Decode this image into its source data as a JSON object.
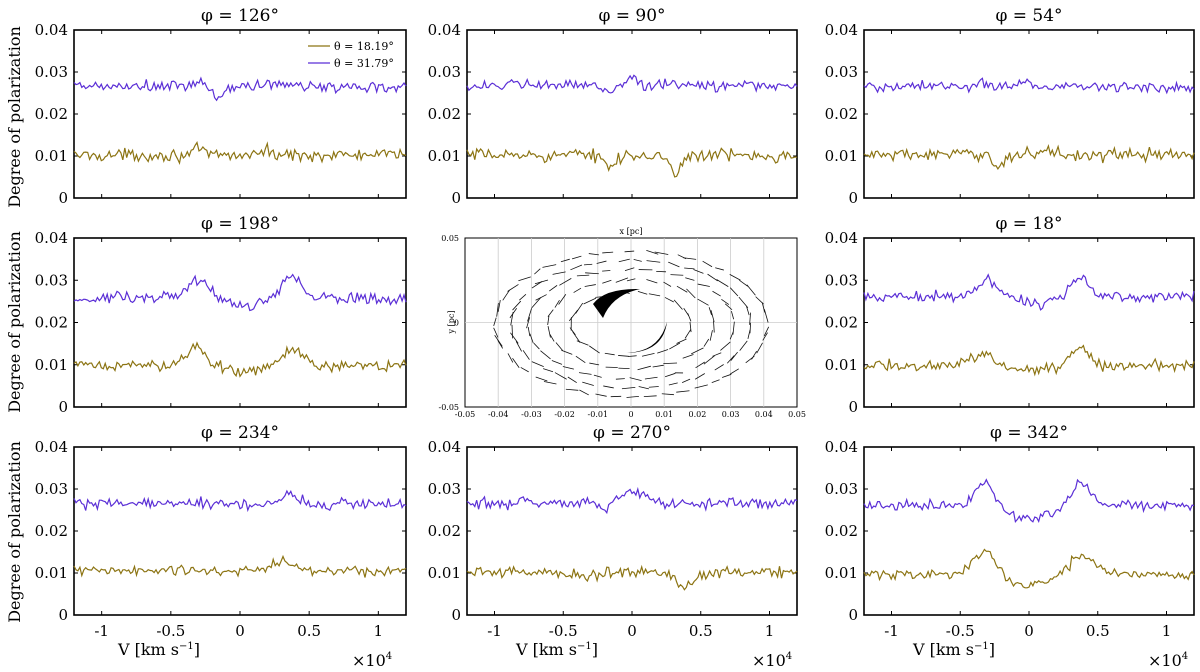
{
  "figure": {
    "ylabel": "Degree of polarization",
    "xlabel": "V [km s",
    "xlabel_exp": "−1",
    "xlabel_close": "]",
    "x_multiplier": "×10",
    "x_multiplier_exp": "4"
  },
  "inset": {
    "xlabel": "x [pc]",
    "ylabel": "y [pc]",
    "xticks": [
      "-0.05",
      "-0.04",
      "-0.03",
      "-0.02",
      "-0.01",
      "0",
      "0.01",
      "0.02",
      "0.03",
      "0.04",
      "0.05"
    ],
    "yticks": [
      "0.05",
      "0",
      "-0.05"
    ]
  },
  "colors": {
    "theta_low": "#8c7413",
    "theta_high": "#5b2fd6",
    "axis": "#000000"
  },
  "chart_data": [
    {
      "type": "line",
      "panel": "phi_126",
      "title": "φ = 126°",
      "phi": "126",
      "xlim": [
        -12000,
        12000
      ],
      "ylim": [
        0,
        0.04
      ],
      "yticks": [
        "0",
        "0.01",
        "0.02",
        "0.03",
        "0.04"
      ],
      "xticks": [
        "-1",
        "-0.5",
        "0",
        "0.5",
        "1"
      ],
      "legend": {
        "position": "top-right",
        "entries": [
          "θ = 18.19°",
          "θ = 31.79°"
        ]
      },
      "series": [
        {
          "name": "θ = 18.19°",
          "color": "#8c7413",
          "mean": 0.0102,
          "noise": 0.0011,
          "features": [
            {
              "v": -3000,
              "amp": 0.0012,
              "w": 400
            },
            {
              "v": 1800,
              "amp": 0.0008,
              "w": 600
            }
          ]
        },
        {
          "name": "θ = 31.79°",
          "color": "#5b2fd6",
          "mean": 0.0265,
          "noise": 0.0011,
          "features": [
            {
              "v": -2800,
              "amp": 0.0015,
              "w": 400
            },
            {
              "v": -1700,
              "amp": -0.0025,
              "w": 500
            },
            {
              "v": 2500,
              "amp": 0.0008,
              "w": 700
            }
          ]
        }
      ]
    },
    {
      "type": "line",
      "panel": "phi_90",
      "title": "φ = 90°",
      "phi": "90",
      "xlim": [
        -12000,
        12000
      ],
      "ylim": [
        0,
        0.04
      ],
      "yticks": [
        "0",
        "0.01",
        "0.02",
        "0.03",
        "0.04"
      ],
      "xticks": [
        "-1",
        "-0.5",
        "0",
        "0.5",
        "1"
      ],
      "series": [
        {
          "name": "θ = 18.19°",
          "color": "#8c7413",
          "mean": 0.0102,
          "noise": 0.0011,
          "features": [
            {
              "v": -1500,
              "amp": -0.0025,
              "w": 350
            },
            {
              "v": 1400,
              "amp": -0.0012,
              "w": 400
            },
            {
              "v": 3200,
              "amp": -0.0045,
              "w": 350
            }
          ]
        },
        {
          "name": "θ = 31.79°",
          "color": "#5b2fd6",
          "mean": 0.0268,
          "noise": 0.001,
          "features": [
            {
              "v": 0,
              "amp": 0.0022,
              "w": 350
            },
            {
              "v": -1800,
              "amp": -0.0012,
              "w": 400
            }
          ]
        }
      ]
    },
    {
      "type": "line",
      "panel": "phi_54",
      "title": "φ = 54°",
      "phi": "54",
      "xlim": [
        -12000,
        12000
      ],
      "ylim": [
        0,
        0.04
      ],
      "yticks": [
        "0",
        "0.01",
        "0.02",
        "0.03",
        "0.04"
      ],
      "xticks": [
        "-1",
        "-0.5",
        "0",
        "0.5",
        "1"
      ],
      "series": [
        {
          "name": "θ = 18.19°",
          "color": "#8c7413",
          "mean": 0.0103,
          "noise": 0.0011,
          "features": [
            {
              "v": -2300,
              "amp": -0.0028,
              "w": 350
            },
            {
              "v": 1400,
              "amp": 0.0012,
              "w": 450
            }
          ]
        },
        {
          "name": "θ = 31.79°",
          "color": "#5b2fd6",
          "mean": 0.0265,
          "noise": 0.001,
          "features": [
            {
              "v": -3500,
              "amp": 0.0012,
              "w": 400
            },
            {
              "v": -200,
              "amp": 0.0012,
              "w": 500
            }
          ]
        }
      ]
    },
    {
      "type": "line",
      "panel": "phi_198",
      "title": "φ = 198°",
      "phi": "198",
      "xlim": [
        -12000,
        12000
      ],
      "ylim": [
        0,
        0.04
      ],
      "yticks": [
        "0",
        "0.01",
        "0.02",
        "0.03",
        "0.04"
      ],
      "xticks": [
        "-1",
        "-0.5",
        "0",
        "0.5",
        "1"
      ],
      "series": [
        {
          "name": "θ = 18.19°",
          "color": "#8c7413",
          "mean": 0.0098,
          "noise": 0.001,
          "features": [
            {
              "v": -3200,
              "amp": 0.0045,
              "w": 700
            },
            {
              "v": 3800,
              "amp": 0.0035,
              "w": 700
            },
            {
              "v": 300,
              "amp": -0.0015,
              "w": 900
            }
          ]
        },
        {
          "name": "θ = 31.79°",
          "color": "#5b2fd6",
          "mean": 0.0258,
          "noise": 0.001,
          "features": [
            {
              "v": -3000,
              "amp": 0.0038,
              "w": 800
            },
            {
              "v": 3700,
              "amp": 0.005,
              "w": 700
            },
            {
              "v": 400,
              "amp": -0.002,
              "w": 1200
            }
          ]
        }
      ]
    },
    {
      "type": "line",
      "panel": "phi_18",
      "title": "φ = 18°",
      "phi": "18",
      "xlim": [
        -12000,
        12000
      ],
      "ylim": [
        0,
        0.04
      ],
      "yticks": [
        "0",
        "0.01",
        "0.02",
        "0.03",
        "0.04"
      ],
      "xticks": [
        "-1",
        "-0.5",
        "0",
        "0.5",
        "1"
      ],
      "series": [
        {
          "name": "θ = 18.19°",
          "color": "#8c7413",
          "mean": 0.0098,
          "noise": 0.001,
          "features": [
            {
              "v": -3500,
              "amp": 0.0025,
              "w": 800
            },
            {
              "v": 3800,
              "amp": 0.0045,
              "w": 600
            },
            {
              "v": 300,
              "amp": -0.0012,
              "w": 1000
            }
          ]
        },
        {
          "name": "θ = 31.79°",
          "color": "#5b2fd6",
          "mean": 0.0262,
          "noise": 0.001,
          "features": [
            {
              "v": -3000,
              "amp": 0.0035,
              "w": 700
            },
            {
              "v": 3700,
              "amp": 0.0045,
              "w": 600
            },
            {
              "v": 400,
              "amp": -0.0018,
              "w": 1200
            }
          ]
        }
      ]
    },
    {
      "type": "line",
      "panel": "phi_234",
      "title": "φ = 234°",
      "phi": "234",
      "xlim": [
        -12000,
        12000
      ],
      "ylim": [
        0,
        0.04
      ],
      "yticks": [
        "0",
        "0.01",
        "0.02",
        "0.03",
        "0.04"
      ],
      "xticks": [
        "-1",
        "-0.5",
        "0",
        "0.5",
        "1"
      ],
      "series": [
        {
          "name": "θ = 18.19°",
          "color": "#8c7413",
          "mean": 0.0105,
          "noise": 0.001,
          "features": [
            {
              "v": 3200,
              "amp": 0.0018,
              "w": 900
            }
          ]
        },
        {
          "name": "θ = 31.79°",
          "color": "#5b2fd6",
          "mean": 0.0265,
          "noise": 0.001,
          "features": [
            {
              "v": 3500,
              "amp": 0.0022,
              "w": 600
            }
          ]
        }
      ]
    },
    {
      "type": "line",
      "panel": "phi_270",
      "title": "φ = 270°",
      "phi": "270",
      "xlim": [
        -12000,
        12000
      ],
      "ylim": [
        0,
        0.04
      ],
      "yticks": [
        "0",
        "0.01",
        "0.02",
        "0.03",
        "0.04"
      ],
      "xticks": [
        "-1",
        "-0.5",
        "0",
        "0.5",
        "1"
      ],
      "series": [
        {
          "name": "θ = 18.19°",
          "color": "#8c7413",
          "mean": 0.0102,
          "noise": 0.001,
          "features": [
            {
              "v": 3800,
              "amp": -0.003,
              "w": 700
            },
            {
              "v": -3500,
              "amp": -0.0012,
              "w": 700
            }
          ]
        },
        {
          "name": "θ = 31.79°",
          "color": "#5b2fd6",
          "mean": 0.0268,
          "noise": 0.001,
          "features": [
            {
              "v": -2000,
              "amp": -0.002,
              "w": 350
            },
            {
              "v": 0,
              "amp": 0.0025,
              "w": 700
            }
          ]
        }
      ]
    },
    {
      "type": "line",
      "panel": "phi_342",
      "title": "φ = 342°",
      "phi": "342",
      "xlim": [
        -12000,
        12000
      ],
      "ylim": [
        0,
        0.04
      ],
      "yticks": [
        "0",
        "0.01",
        "0.02",
        "0.03",
        "0.04"
      ],
      "xticks": [
        "-1",
        "-0.5",
        "0",
        "0.5",
        "1"
      ],
      "series": [
        {
          "name": "θ = 18.19°",
          "color": "#8c7413",
          "mean": 0.0097,
          "noise": 0.0009,
          "features": [
            {
              "v": -3300,
              "amp": 0.0055,
              "w": 800
            },
            {
              "v": 3900,
              "amp": 0.0045,
              "w": 900
            },
            {
              "v": 0,
              "amp": -0.0028,
              "w": 1300
            }
          ]
        },
        {
          "name": "θ = 31.79°",
          "color": "#5b2fd6",
          "mean": 0.026,
          "noise": 0.0009,
          "features": [
            {
              "v": -3200,
              "amp": 0.0055,
              "w": 700
            },
            {
              "v": 3800,
              "amp": 0.0055,
              "w": 700
            },
            {
              "v": 0,
              "amp": -0.0032,
              "w": 1500
            }
          ]
        }
      ]
    }
  ]
}
